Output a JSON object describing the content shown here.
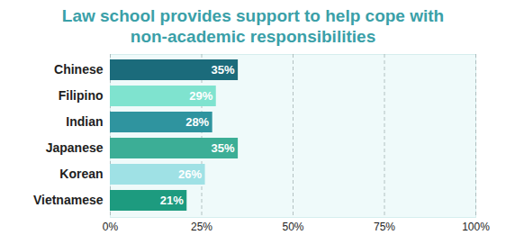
{
  "chart_data": {
    "type": "bar",
    "title": "Law school provides support to help cope with non-academic responsibilities",
    "orientation": "horizontal",
    "categories": [
      "Chinese",
      "Filipino",
      "Indian",
      "Japanese",
      "Korean",
      "Vietnamese"
    ],
    "values": [
      35,
      29,
      28,
      35,
      26,
      21
    ],
    "value_labels": [
      "35%",
      "29%",
      "28%",
      "35%",
      "26%",
      "21%"
    ],
    "colors": [
      "#1b6b7b",
      "#7fe3cf",
      "#2f949f",
      "#3cae96",
      "#9fe1e5",
      "#1d9b7f"
    ],
    "xlim": [
      0,
      100
    ],
    "xticks": [
      {
        "value": 0,
        "label": "0%"
      },
      {
        "value": 25,
        "label": "25%"
      },
      {
        "value": 50,
        "label": "50%"
      },
      {
        "value": 75,
        "label": "75%"
      },
      {
        "value": 100,
        "label": "100%"
      }
    ],
    "grid": true,
    "data_labels": true
  }
}
